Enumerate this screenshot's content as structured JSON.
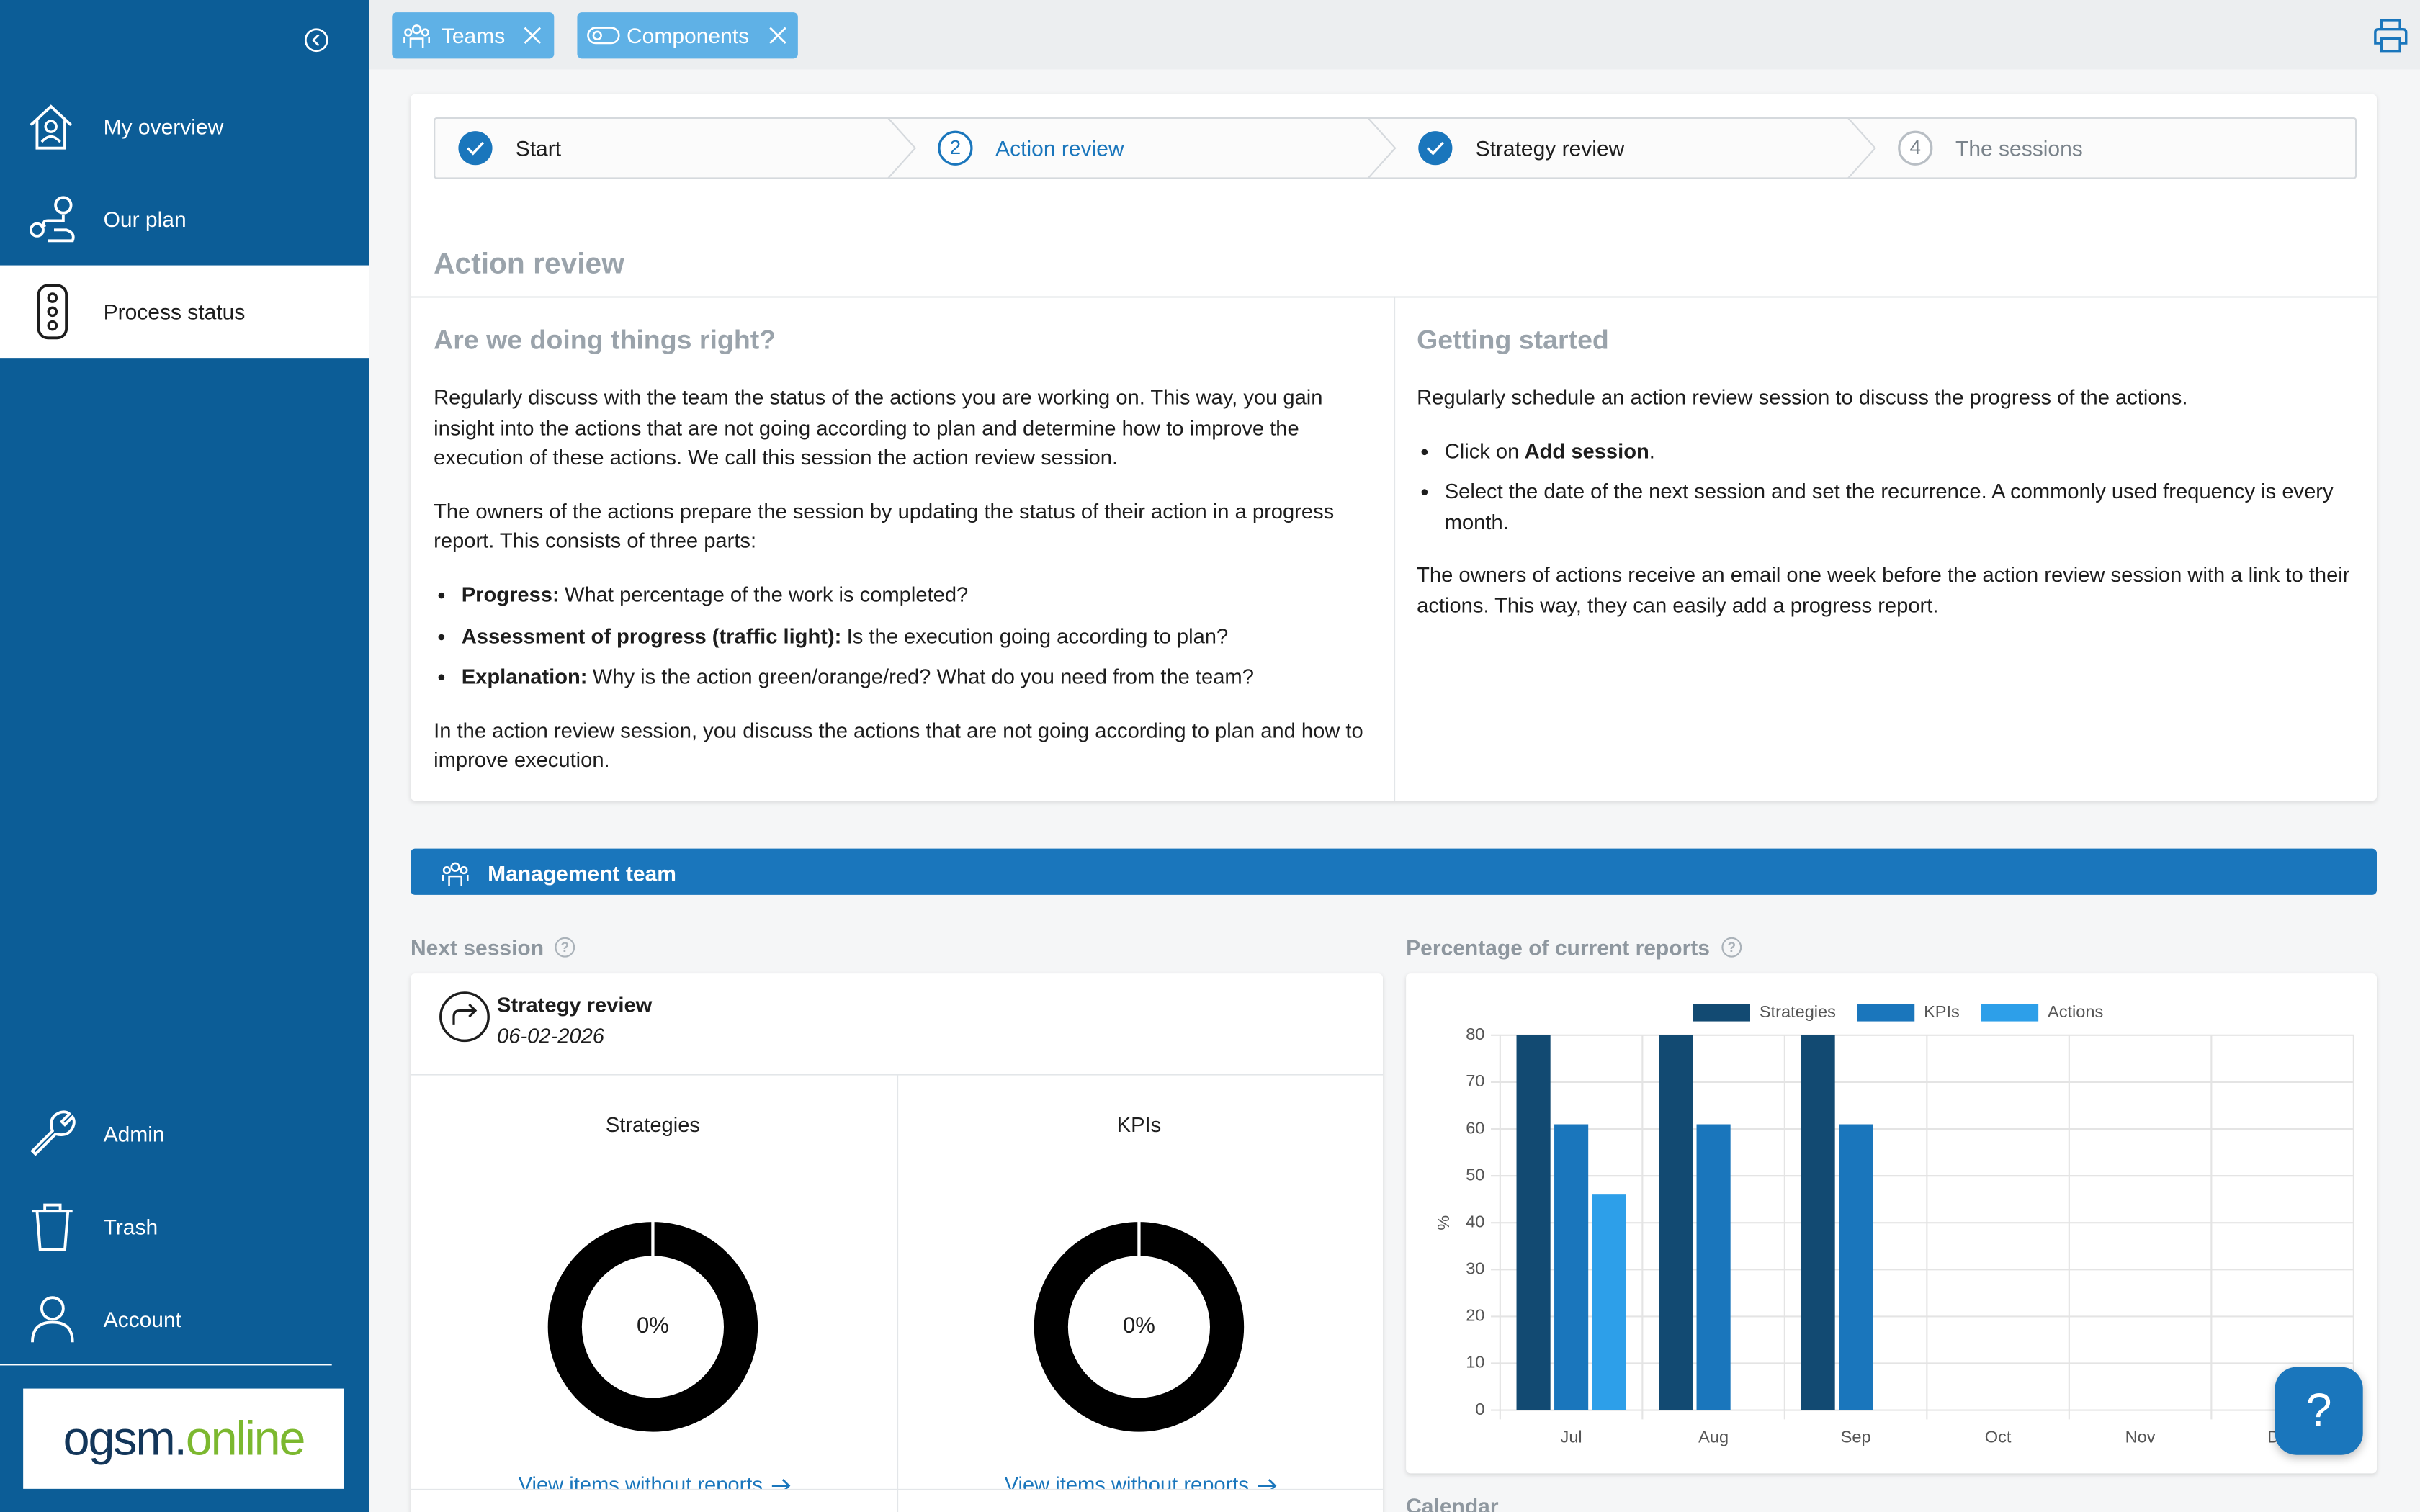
{
  "sidebar": {
    "nav_top": [
      "My overview",
      "Our plan",
      "Process status"
    ],
    "nav_bottom": [
      "Admin",
      "Trash",
      "Account"
    ],
    "logo": {
      "main": "ogsm.",
      "accent": "online"
    }
  },
  "tabs": [
    "Teams",
    "Components"
  ],
  "stepper": [
    {
      "label": "Start",
      "state": "done"
    },
    {
      "number": "2",
      "label": "Action review",
      "state": "active"
    },
    {
      "label": "Strategy review",
      "state": "done"
    },
    {
      "number": "4",
      "label": "The sessions",
      "state": "todo"
    }
  ],
  "section_title": "Action review",
  "left": {
    "title": "Are we doing things right?",
    "intro": [
      "Regularly discuss with the team the status of the actions you are working on. This way, you gain insight into the actions that are not going according to plan and determine how to improve the execution of these actions. We call this session the action review session.",
      "The owners of the actions prepare the session by updating the status of their action in a progress report. This consists of three parts:"
    ],
    "items": [
      {
        "label": "Progress:",
        "text": "What percentage of the work is completed?"
      },
      {
        "label": "Assessment of progress (traffic light):",
        "text": "Is the execution going according to plan?"
      },
      {
        "label": "Explanation:",
        "text": "Why is the action green/orange/red? What do you need from the team?"
      }
    ],
    "outro": "In the action review session, you discuss the actions that are not going according to plan and how to improve execution."
  },
  "right": {
    "title": "Getting started",
    "intro": "Regularly schedule an action review session to discuss the progress of the actions.",
    "item_1": {
      "before": "Click on",
      "bold": "Add session",
      "after": "."
    },
    "item_2": "Select the date of the next session and set the recurrence. A commonly used frequency is every month.",
    "outro": "The owners of actions receive an email one week before the action review session with a link to their actions. This way, they can easily add a progress report."
  },
  "team_bar": "Management team",
  "next_session": {
    "label": "Next session",
    "title": "Strategy review",
    "date": "06-02-2026",
    "metrics": [
      {
        "title": "Strategies",
        "value": 0,
        "value_label": "0%",
        "link": "View items without reports"
      },
      {
        "title": "KPIs",
        "value": 0,
        "value_label": "0%",
        "link": "View items without reports"
      }
    ]
  },
  "chart_data": {
    "type": "bar",
    "title": "Percentage of current reports",
    "y_label": "%",
    "categories": [
      "Jul",
      "Aug",
      "Sep",
      "Oct",
      "Nov",
      "Dec"
    ],
    "series": [
      {
        "name": "Strategies",
        "color": "#124a72",
        "values": [
          80,
          80,
          80,
          null,
          null,
          null
        ]
      },
      {
        "name": "KPIs",
        "color": "#1a76bc",
        "values": [
          61,
          61,
          61,
          null,
          null,
          null
        ]
      },
      {
        "name": "Actions",
        "color": "#2d9fe9",
        "values": [
          46,
          null,
          null,
          null,
          null,
          null
        ]
      }
    ],
    "ylim": [
      0,
      80
    ],
    "yticks": [
      0,
      10,
      20,
      30,
      40,
      50,
      60,
      70,
      80
    ],
    "grid": true
  },
  "calendar_label": "Calendar",
  "help": "?"
}
